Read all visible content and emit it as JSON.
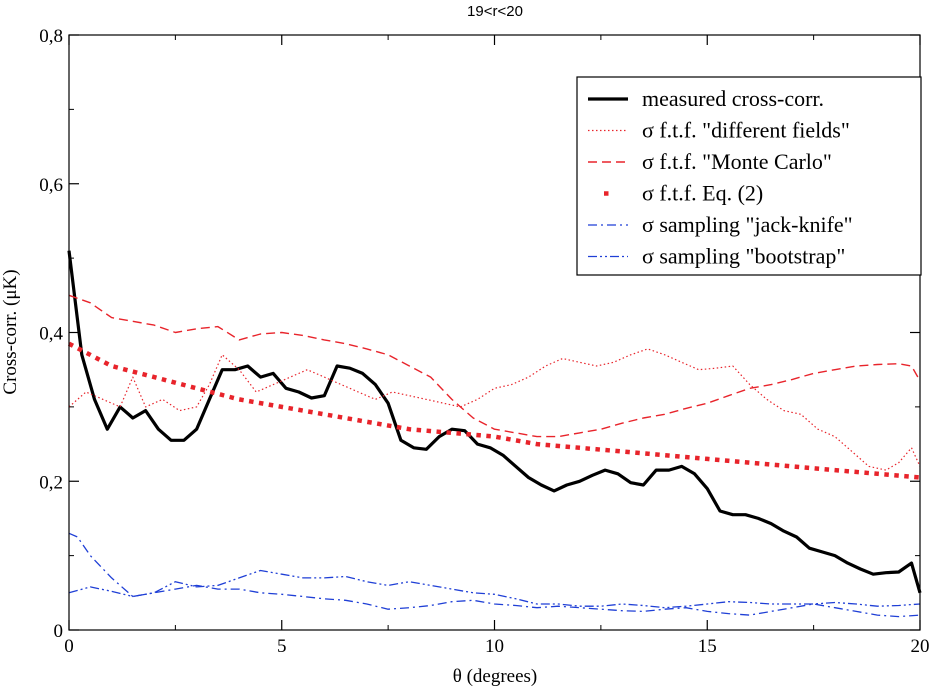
{
  "chart_data": {
    "type": "line",
    "title": "19<r<20",
    "xlabel": "θ (degrees)",
    "ylabel": "Cross-corr. (μK)",
    "xlim": [
      0,
      20
    ],
    "ylim": [
      0,
      0.8
    ],
    "xticks": [
      0,
      5,
      10,
      15,
      20
    ],
    "xtick_labels": [
      "0",
      "5",
      "10",
      "15",
      "20"
    ],
    "yticks": [
      0,
      0.2,
      0.4,
      0.6,
      0.8
    ],
    "ytick_labels": [
      "0",
      "0,2",
      "0,4",
      "0,6",
      "0,8"
    ],
    "grid": false,
    "legend_position": "top-right",
    "series": [
      {
        "name": "measured cross-corr.",
        "color": "#000000",
        "style": "solid-thick",
        "x": [
          0,
          0.3,
          0.6,
          0.9,
          1.2,
          1.5,
          1.8,
          2.1,
          2.4,
          2.7,
          3.0,
          3.3,
          3.6,
          3.9,
          4.2,
          4.5,
          4.8,
          5.1,
          5.4,
          5.7,
          6.0,
          6.3,
          6.6,
          6.9,
          7.2,
          7.5,
          7.8,
          8.1,
          8.4,
          8.7,
          9.0,
          9.3,
          9.6,
          9.9,
          10.2,
          10.5,
          10.8,
          11.1,
          11.4,
          11.7,
          12.0,
          12.3,
          12.6,
          12.9,
          13.2,
          13.5,
          13.8,
          14.1,
          14.4,
          14.7,
          15.0,
          15.3,
          15.6,
          15.9,
          16.2,
          16.5,
          16.8,
          17.1,
          17.4,
          17.7,
          18.0,
          18.3,
          18.6,
          18.9,
          19.2,
          19.5,
          19.8,
          20.0
        ],
        "y": [
          0.51,
          0.37,
          0.31,
          0.27,
          0.3,
          0.285,
          0.295,
          0.27,
          0.255,
          0.255,
          0.27,
          0.31,
          0.35,
          0.35,
          0.355,
          0.34,
          0.345,
          0.325,
          0.32,
          0.312,
          0.315,
          0.355,
          0.352,
          0.345,
          0.33,
          0.305,
          0.255,
          0.245,
          0.243,
          0.26,
          0.27,
          0.268,
          0.25,
          0.245,
          0.235,
          0.22,
          0.205,
          0.195,
          0.187,
          0.195,
          0.2,
          0.208,
          0.215,
          0.21,
          0.198,
          0.195,
          0.215,
          0.215,
          0.22,
          0.21,
          0.19,
          0.16,
          0.155,
          0.155,
          0.15,
          0.143,
          0.133,
          0.125,
          0.11,
          0.105,
          0.1,
          0.09,
          0.082,
          0.075,
          0.077,
          0.078,
          0.09,
          0.05
        ]
      },
      {
        "name": "σ f.t.f. \"different fields\"",
        "color": "#e8242b",
        "style": "dotted",
        "x": [
          0,
          0.4,
          0.8,
          1.2,
          1.5,
          1.8,
          2.2,
          2.6,
          3.0,
          3.3,
          3.6,
          4.0,
          4.4,
          4.8,
          5.2,
          5.6,
          6.0,
          6.4,
          6.8,
          7.2,
          7.6,
          8.0,
          8.4,
          8.8,
          9.2,
          9.6,
          10.0,
          10.4,
          10.8,
          11.2,
          11.6,
          12.0,
          12.4,
          12.8,
          13.2,
          13.6,
          14.0,
          14.4,
          14.8,
          15.2,
          15.6,
          16.0,
          16.4,
          16.8,
          17.2,
          17.6,
          18.0,
          18.4,
          18.8,
          19.2,
          19.5,
          19.8,
          20.0
        ],
        "y": [
          0.3,
          0.32,
          0.31,
          0.3,
          0.34,
          0.3,
          0.31,
          0.295,
          0.3,
          0.33,
          0.37,
          0.35,
          0.32,
          0.33,
          0.34,
          0.35,
          0.34,
          0.33,
          0.32,
          0.31,
          0.32,
          0.315,
          0.31,
          0.305,
          0.3,
          0.31,
          0.325,
          0.33,
          0.34,
          0.355,
          0.365,
          0.36,
          0.355,
          0.36,
          0.37,
          0.378,
          0.37,
          0.36,
          0.35,
          0.352,
          0.355,
          0.33,
          0.31,
          0.295,
          0.29,
          0.27,
          0.26,
          0.24,
          0.22,
          0.215,
          0.225,
          0.245,
          0.22
        ]
      },
      {
        "name": "σ f.t.f. \"Monte Carlo\"",
        "color": "#e8242b",
        "style": "dashed",
        "x": [
          0,
          0.5,
          1.0,
          1.5,
          2.0,
          2.5,
          3.0,
          3.5,
          4.0,
          4.5,
          5.0,
          5.5,
          6.0,
          6.5,
          7.0,
          7.5,
          8.0,
          8.5,
          9.0,
          9.5,
          10.0,
          10.5,
          11.0,
          11.5,
          12.0,
          12.5,
          13.0,
          13.5,
          14.0,
          14.5,
          15.0,
          15.5,
          16.0,
          16.5,
          17.0,
          17.5,
          18.0,
          18.5,
          19.0,
          19.5,
          19.8,
          20.0
        ],
        "y": [
          0.45,
          0.44,
          0.42,
          0.415,
          0.41,
          0.4,
          0.405,
          0.408,
          0.39,
          0.398,
          0.4,
          0.396,
          0.39,
          0.385,
          0.378,
          0.37,
          0.355,
          0.34,
          0.31,
          0.285,
          0.27,
          0.265,
          0.26,
          0.26,
          0.265,
          0.27,
          0.278,
          0.285,
          0.29,
          0.298,
          0.305,
          0.315,
          0.325,
          0.33,
          0.337,
          0.345,
          0.35,
          0.355,
          0.357,
          0.358,
          0.355,
          0.335
        ]
      },
      {
        "name": "σ f.t.f. Eq. (2)",
        "color": "#e8242b",
        "style": "square-dots",
        "x": [
          0,
          1,
          2,
          3,
          4,
          5,
          6,
          7,
          8,
          9,
          10,
          11,
          12,
          13,
          14,
          15,
          16,
          17,
          18,
          19,
          20
        ],
        "y": [
          0.385,
          0.355,
          0.34,
          0.325,
          0.31,
          0.3,
          0.29,
          0.28,
          0.27,
          0.265,
          0.26,
          0.25,
          0.245,
          0.24,
          0.235,
          0.23,
          0.225,
          0.22,
          0.215,
          0.21,
          0.205
        ]
      },
      {
        "name": "σ sampling \"jack-knife\"",
        "color": "#1f3fd6",
        "style": "dash-dot",
        "x": [
          0,
          0.2,
          0.5,
          1.0,
          1.5,
          2.0,
          2.5,
          3.0,
          3.5,
          4.0,
          4.5,
          5.0,
          5.5,
          6.0,
          6.5,
          7.0,
          7.5,
          8.0,
          8.5,
          9.0,
          9.5,
          10.0,
          10.5,
          11.0,
          11.5,
          12.0,
          12.5,
          13.0,
          13.5,
          14.0,
          14.5,
          15.0,
          15.5,
          16.0,
          16.5,
          17.0,
          17.5,
          18.0,
          18.5,
          19.0,
          19.5,
          20.0
        ],
        "y": [
          0.13,
          0.125,
          0.1,
          0.07,
          0.045,
          0.05,
          0.055,
          0.06,
          0.055,
          0.055,
          0.05,
          0.048,
          0.045,
          0.042,
          0.04,
          0.035,
          0.028,
          0.03,
          0.033,
          0.038,
          0.04,
          0.035,
          0.033,
          0.03,
          0.032,
          0.03,
          0.028,
          0.026,
          0.025,
          0.028,
          0.03,
          0.025,
          0.022,
          0.02,
          0.025,
          0.03,
          0.035,
          0.03,
          0.025,
          0.02,
          0.018,
          0.02
        ]
      },
      {
        "name": "σ sampling \"bootstrap\"",
        "color": "#1f3fd6",
        "style": "dash-dot-dot",
        "x": [
          0,
          0.5,
          1.0,
          1.5,
          2.0,
          2.5,
          3.0,
          3.5,
          4.0,
          4.5,
          5.0,
          5.5,
          6.0,
          6.5,
          7.0,
          7.5,
          8.0,
          8.5,
          9.0,
          9.5,
          10.0,
          10.5,
          11.0,
          11.5,
          12.0,
          12.5,
          13.0,
          13.5,
          14.0,
          14.5,
          15.0,
          15.5,
          16.0,
          16.5,
          17.0,
          17.5,
          18.0,
          18.5,
          19.0,
          19.5,
          20.0
        ],
        "y": [
          0.05,
          0.058,
          0.052,
          0.045,
          0.05,
          0.065,
          0.058,
          0.06,
          0.07,
          0.08,
          0.075,
          0.07,
          0.07,
          0.072,
          0.065,
          0.06,
          0.065,
          0.06,
          0.055,
          0.05,
          0.048,
          0.042,
          0.035,
          0.035,
          0.032,
          0.032,
          0.035,
          0.033,
          0.03,
          0.032,
          0.035,
          0.038,
          0.037,
          0.035,
          0.035,
          0.035,
          0.037,
          0.035,
          0.032,
          0.033,
          0.035
        ]
      }
    ]
  }
}
